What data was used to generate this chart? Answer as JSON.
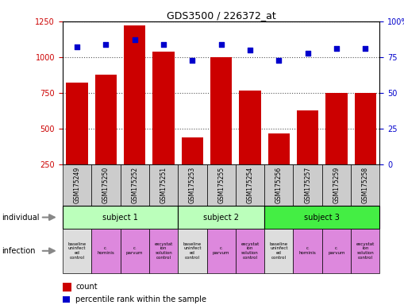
{
  "title": "GDS3500 / 226372_at",
  "bar_values": [
    820,
    880,
    1220,
    1040,
    440,
    1000,
    770,
    470,
    630,
    750,
    750
  ],
  "percentile_values": [
    82,
    84,
    87,
    84,
    73,
    84,
    80,
    73,
    78,
    81,
    81
  ],
  "sample_labels": [
    "GSM175249",
    "GSM175250",
    "GSM175252",
    "GSM175251",
    "GSM175253",
    "GSM175255",
    "GSM175254",
    "GSM175256",
    "GSM175257",
    "GSM175259",
    "GSM175258"
  ],
  "bar_color": "#cc0000",
  "dot_color": "#0000cc",
  "ylim_left": [
    250,
    1250
  ],
  "ylim_right": [
    0,
    100
  ],
  "yticks_left": [
    250,
    500,
    750,
    1000,
    1250
  ],
  "yticks_right": [
    0,
    25,
    50,
    75,
    100
  ],
  "subject_groups": [
    {
      "label": "subject 1",
      "start": 0,
      "end": 3,
      "color": "#bbffbb"
    },
    {
      "label": "subject 2",
      "start": 4,
      "end": 6,
      "color": "#bbffbb"
    },
    {
      "label": "subject 3",
      "start": 7,
      "end": 10,
      "color": "#44ee44"
    }
  ],
  "infection_labels": [
    "baseline\nuninfect\ned\ncontrol",
    "c.\nhominis",
    "c.\nparvum",
    "excystat\nion\nsolution\ncontrol",
    "baseline\nuninfect\ned\ncontrol",
    "c.\nparvum",
    "excystat\nion\nsolution\ncontrol",
    "baseline\nuninfect\ned\ncontrol",
    "c.\nhominis",
    "c.\nparvum",
    "excystat\nion\nsolution\ncontrol"
  ],
  "infection_colors": [
    "#dddddd",
    "#dd88dd",
    "#dd88dd",
    "#dd88dd",
    "#dddddd",
    "#dd88dd",
    "#dd88dd",
    "#dddddd",
    "#dd88dd",
    "#dd88dd",
    "#dd88dd"
  ],
  "individual_label": "individual",
  "infection_label": "infection",
  "legend_count_color": "#cc0000",
  "legend_dot_color": "#0000cc",
  "legend_count_text": "count",
  "legend_dot_text": "percentile rank within the sample",
  "gridline_color": "#555555",
  "sample_bg_color": "#cccccc",
  "fig_width": 5.09,
  "fig_height": 3.84,
  "fig_dpi": 100
}
